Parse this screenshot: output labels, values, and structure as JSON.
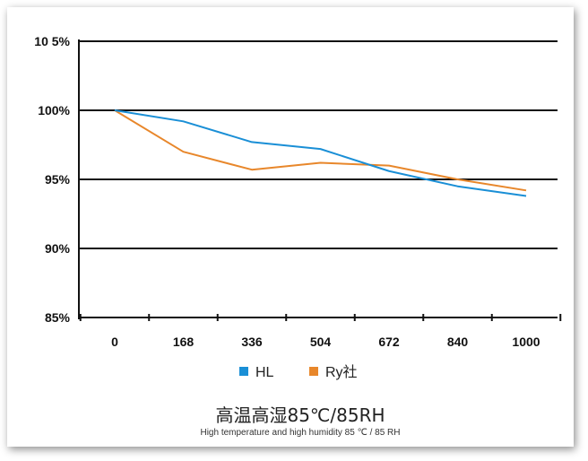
{
  "chart_data": {
    "type": "line",
    "title": "高温高湿85℃/85RH",
    "subtitle": "High temperature and high humidity 85 ℃ / 85 RH",
    "xlabel": "",
    "ylabel": "",
    "x": [
      0,
      168,
      336,
      504,
      672,
      840,
      1000
    ],
    "x_tick_labels": [
      "0",
      "168",
      "336",
      "504",
      "672",
      "840",
      "1000"
    ],
    "y_tick_labels": [
      "85%",
      "90%",
      "95%",
      "100%",
      "10 5%"
    ],
    "y_ticks": [
      85,
      90,
      95,
      100,
      105
    ],
    "ylim": [
      85,
      105
    ],
    "grid": true,
    "legend_position": "bottom",
    "series": [
      {
        "name": "HL",
        "color": "#1a8fd6",
        "values": [
          100.0,
          99.2,
          97.7,
          97.2,
          95.6,
          94.5,
          93.8
        ]
      },
      {
        "name": "Ry社",
        "color": "#e8872b",
        "values": [
          100.0,
          97.0,
          95.7,
          96.2,
          96.0,
          95.0,
          94.2
        ]
      }
    ]
  }
}
